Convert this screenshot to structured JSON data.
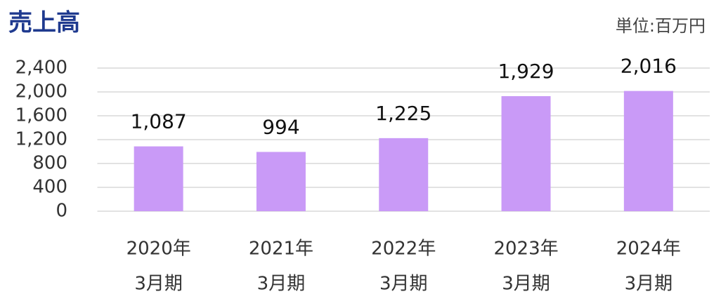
{
  "chart_data": {
    "type": "bar",
    "title": "売上高",
    "unit_label": "単位:百万円",
    "categories": [
      [
        "2020年",
        "3月期"
      ],
      [
        "2021年",
        "3月期"
      ],
      [
        "2022年",
        "3月期"
      ],
      [
        "2023年",
        "3月期"
      ],
      [
        "2024年",
        "3月期"
      ]
    ],
    "values": [
      1087,
      994,
      1225,
      1929,
      2016
    ],
    "value_labels": [
      "1,087",
      "994",
      "1,225",
      "1,929",
      "2,016"
    ],
    "color": "#c99af7",
    "ylim": [
      0,
      2400
    ],
    "yticks": [
      0,
      400,
      800,
      {
        "value": 1200,
        "label": "1,200"
      },
      {
        "value": 1600,
        "label": "1,600"
      },
      {
        "value": 2000,
        "label": "2,000"
      },
      {
        "value": 2400,
        "label": "2,400"
      }
    ],
    "grid": true
  }
}
